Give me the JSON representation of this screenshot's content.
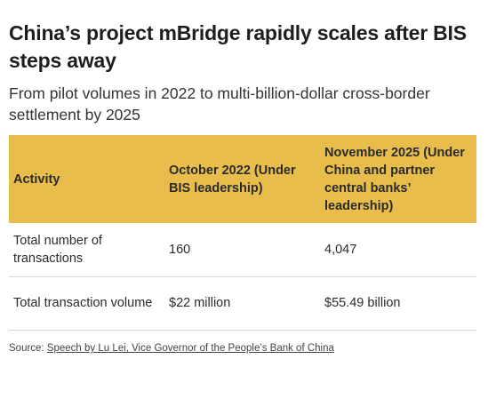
{
  "title": "China’s project mBridge rapidly scales after BIS steps away",
  "subtitle": "From pilot volumes in 2022 to multi-billion-dollar cross-border settlement by 2025",
  "colors": {
    "header_background": "#e8bd4c",
    "row_divider": "#d8d8d8"
  },
  "chart_data": {
    "type": "table",
    "columns": [
      "Activity",
      "October 2022 (Under BIS leadership)",
      "November 2025 (Under China and partner central banks’ leadership)"
    ],
    "rows": [
      [
        "Total number of transactions",
        "160",
        "4,047"
      ],
      [
        "Total transaction volume",
        "$22 million",
        "$55.49 billion"
      ]
    ]
  },
  "source": {
    "prefix": "Source: ",
    "link_text": "Speech by Lu Lei, Vice Governor of the People’s Bank of China"
  }
}
